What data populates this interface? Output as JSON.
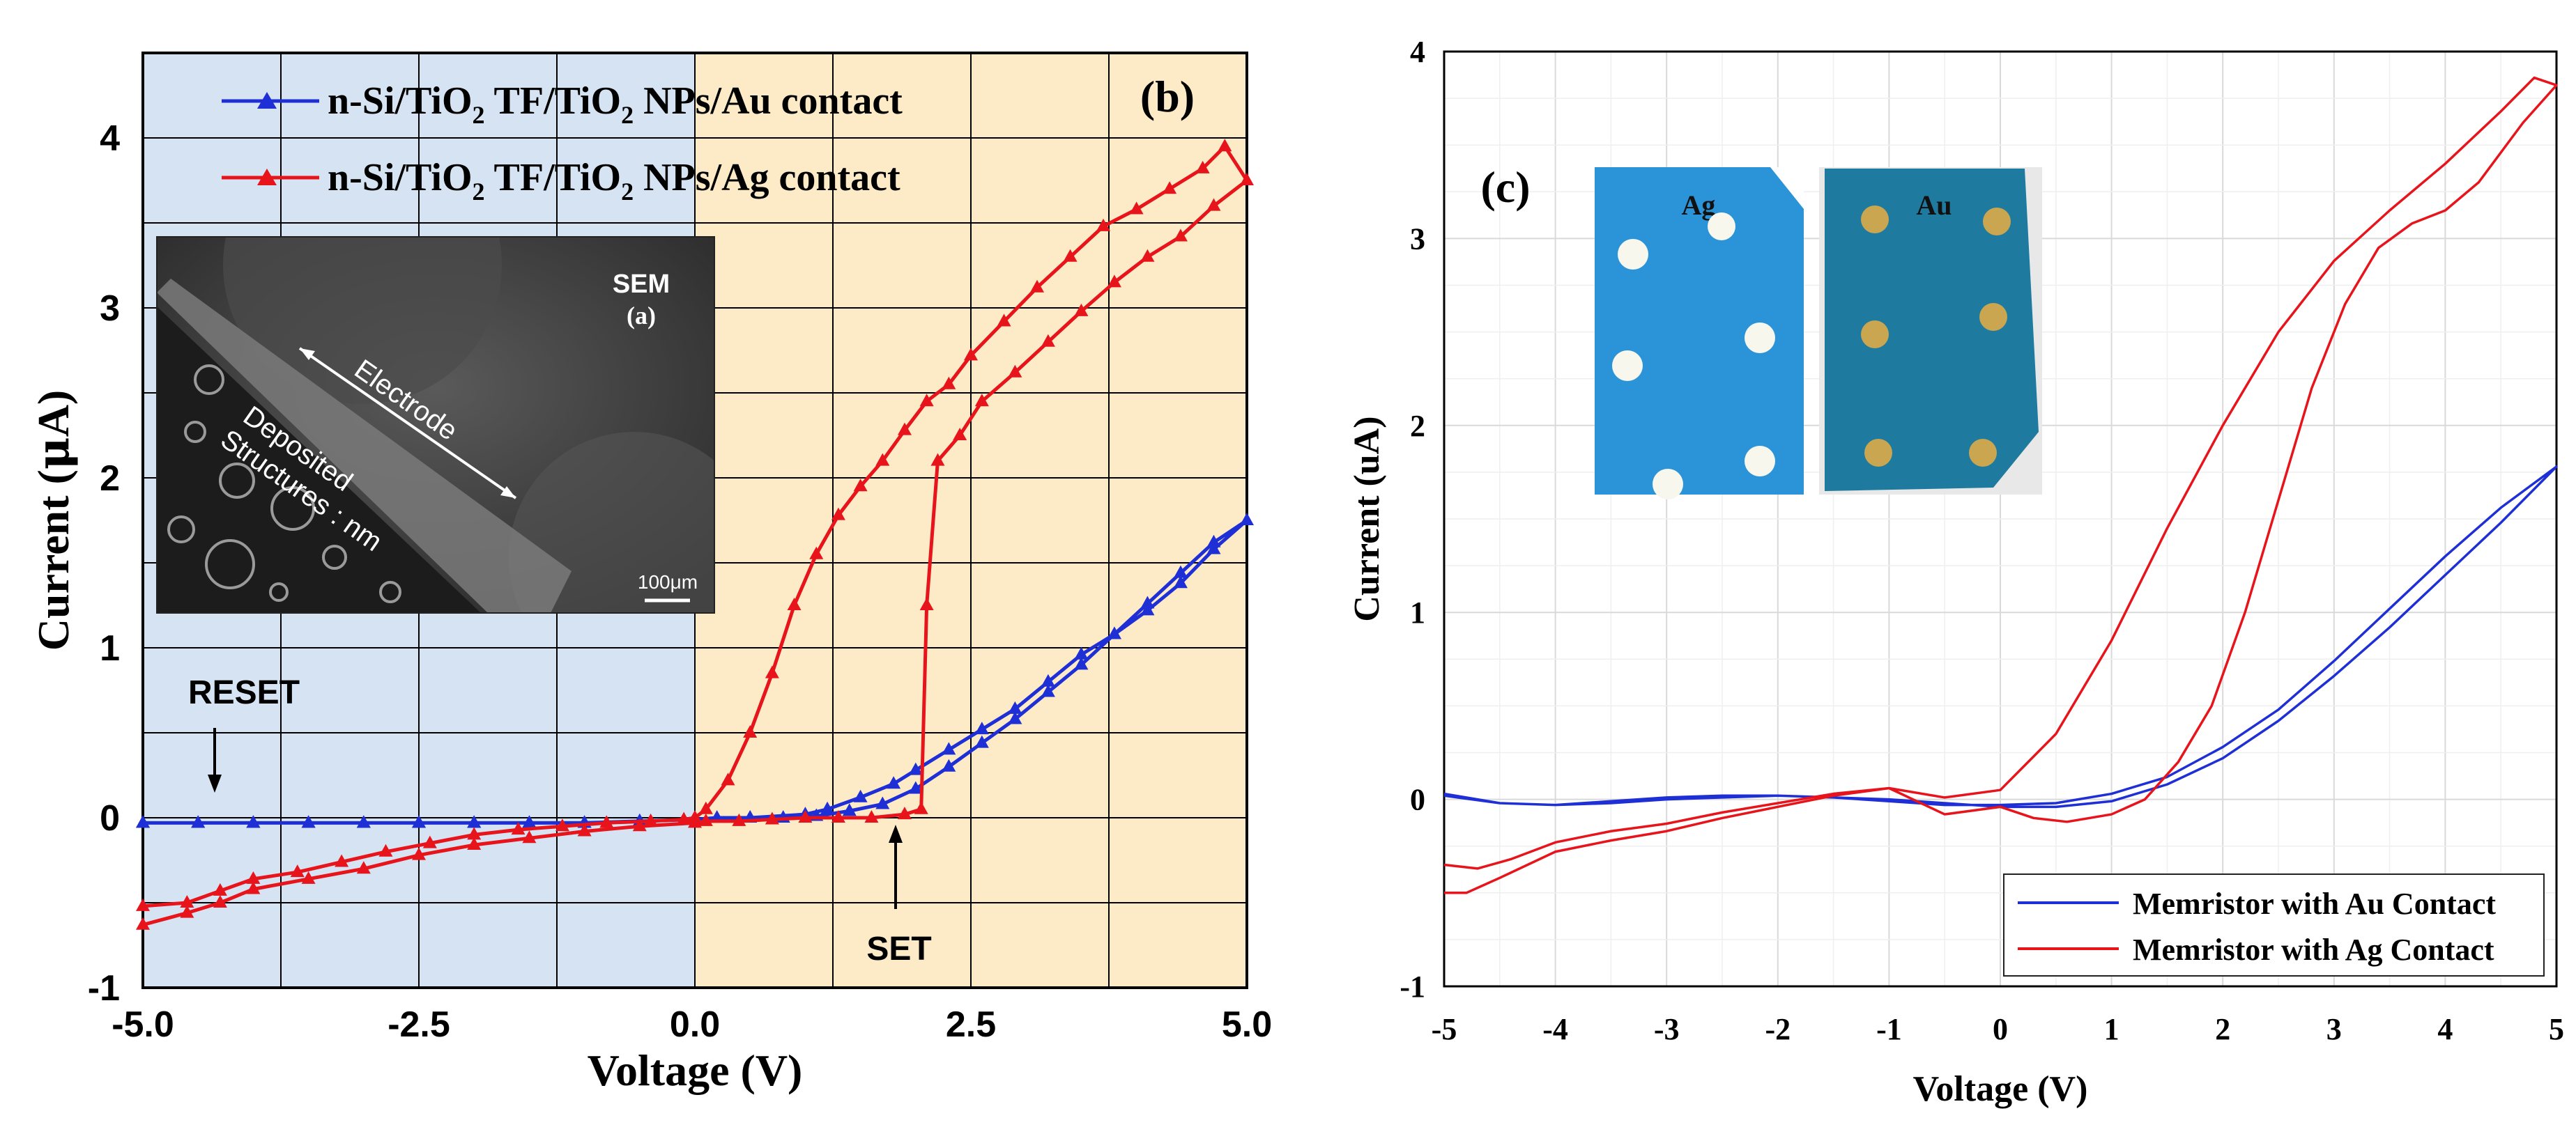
{
  "chart_data": [
    {
      "type": "line",
      "panel_label": "(b)",
      "xlabel": "Voltage (V)",
      "ylabel_main": "Current (",
      "ylabel_mu": "μ",
      "ylabel_end": "A)",
      "xlim": [
        -5,
        5
      ],
      "ylim": [
        -1,
        4.5
      ],
      "xticks": [
        -5,
        -2.5,
        0,
        2.5,
        5
      ],
      "xtick_labels": [
        "-5.0",
        "-2.5",
        "0.0",
        "2.5",
        "5.0"
      ],
      "yticks": [
        -1,
        0,
        1,
        2,
        3,
        4
      ],
      "ytick_labels": [
        "-1",
        "0",
        "1",
        "2",
        "3",
        "4"
      ],
      "background_regions": [
        {
          "from": -5,
          "to": 0,
          "color": "#d5e3f2"
        },
        {
          "from": 0,
          "to": 5,
          "color": "#fcebc6"
        }
      ],
      "grid": true,
      "legend_position": "top-left",
      "series": [
        {
          "name_parts": [
            "n-Si/TiO",
            "2",
            " TF/TiO",
            "2",
            " NPs/Au contact"
          ],
          "color": "#1f2fd6",
          "marker": "triangle",
          "x": [
            -5,
            -4.5,
            -4,
            -3.5,
            -3,
            -2.5,
            -2,
            -1.5,
            -1,
            -0.5,
            0,
            0.5,
            1,
            1.2,
            1.5,
            1.8,
            2.0,
            2.3,
            2.6,
            2.9,
            3.2,
            3.5,
            3.8,
            4.1,
            4.4,
            4.7,
            5.0,
            4.7,
            4.4,
            4.1,
            3.8,
            3.5,
            3.2,
            2.9,
            2.6,
            2.3,
            2.0,
            1.7,
            1.4,
            1.1,
            0.8,
            0.5,
            0.2,
            0,
            -0.5,
            -1,
            -1.5,
            -2,
            -2.5,
            -3,
            -3.5,
            -4,
            -4.5,
            -5
          ],
          "y": [
            -0.03,
            -0.03,
            -0.03,
            -0.03,
            -0.03,
            -0.03,
            -0.03,
            -0.03,
            -0.03,
            -0.02,
            -0.01,
            0.0,
            0.02,
            0.05,
            0.12,
            0.2,
            0.28,
            0.4,
            0.52,
            0.64,
            0.8,
            0.96,
            1.08,
            1.22,
            1.38,
            1.58,
            1.75,
            1.62,
            1.44,
            1.26,
            1.08,
            0.9,
            0.74,
            0.58,
            0.44,
            0.3,
            0.17,
            0.08,
            0.04,
            0.01,
            0.0,
            0.0,
            0.0,
            -0.01,
            -0.02,
            -0.03,
            -0.03,
            -0.03,
            -0.03,
            -0.03,
            -0.03,
            -0.03,
            -0.03,
            -0.03
          ]
        },
        {
          "name_parts": [
            "n-Si/TiO",
            "2",
            " TF/TiO",
            "2",
            " NPs/Ag contact"
          ],
          "color": "#e8141b",
          "marker": "triangle",
          "x": [
            -5,
            -4.6,
            -4.3,
            -4.0,
            -3.6,
            -3.2,
            -2.8,
            -2.4,
            -2.0,
            -1.6,
            -1.2,
            -0.8,
            -0.4,
            -0.1,
            0.0,
            0.1,
            0.3,
            0.5,
            0.7,
            0.9,
            1.1,
            1.3,
            1.5,
            1.7,
            1.9,
            2.1,
            2.3,
            2.5,
            2.8,
            3.1,
            3.4,
            3.7,
            4.0,
            4.3,
            4.6,
            4.8,
            5.0,
            4.7,
            4.4,
            4.1,
            3.8,
            3.5,
            3.2,
            2.9,
            2.6,
            2.4,
            2.2,
            2.1,
            2.05,
            1.9,
            1.6,
            1.3,
            1.0,
            0.7,
            0.4,
            0.1,
            0.0,
            -0.5,
            -1.0,
            -1.5,
            -2.0,
            -2.5,
            -3.0,
            -3.5,
            -4.0,
            -4.3,
            -4.6,
            -5.0
          ],
          "y": [
            -0.52,
            -0.5,
            -0.43,
            -0.36,
            -0.32,
            -0.26,
            -0.2,
            -0.15,
            -0.1,
            -0.07,
            -0.05,
            -0.03,
            -0.02,
            -0.01,
            0.0,
            0.05,
            0.22,
            0.5,
            0.85,
            1.25,
            1.55,
            1.78,
            1.95,
            2.1,
            2.28,
            2.45,
            2.55,
            2.72,
            2.92,
            3.12,
            3.3,
            3.48,
            3.58,
            3.7,
            3.82,
            3.95,
            3.75,
            3.6,
            3.42,
            3.3,
            3.15,
            2.98,
            2.8,
            2.62,
            2.45,
            2.25,
            2.1,
            1.25,
            0.05,
            0.02,
            0.0,
            0.0,
            0.0,
            -0.01,
            -0.02,
            -0.02,
            -0.03,
            -0.05,
            -0.08,
            -0.12,
            -0.16,
            -0.22,
            -0.3,
            -0.36,
            -0.42,
            -0.5,
            -0.56,
            -0.63
          ]
        }
      ],
      "annotations": [
        {
          "text": "RESET",
          "arrow_tip": [
            -4.45,
            -0.03
          ],
          "arrow_tail": [
            -4.45,
            0.4
          ],
          "label_at": [
            -4.4,
            0.66
          ]
        },
        {
          "text": "SET",
          "arrow_tip": [
            1.9,
            -0.05
          ],
          "arrow_tail": [
            1.9,
            -0.52
          ],
          "label_at": [
            1.9,
            -0.76
          ]
        }
      ],
      "inset": {
        "label_top": "SEM",
        "label_sub": "(a)",
        "electrode": "Electrode",
        "deposited_line1": "Deposited",
        "deposited_line2": "Structures : nm",
        "scalebar": "100μm"
      }
    },
    {
      "type": "line",
      "panel_label": "(c)",
      "xlabel": "Voltage (V)",
      "ylabel": "Current (uA)",
      "xlim": [
        -5,
        5
      ],
      "ylim": [
        -1,
        4
      ],
      "xticks": [
        -5,
        -4,
        -3,
        -2,
        -1,
        0,
        1,
        2,
        3,
        4,
        5
      ],
      "yticks": [
        -1,
        0,
        1,
        2,
        3,
        4
      ],
      "grid": true,
      "legend_position": "bottom-right",
      "series": [
        {
          "name": "Memristor with Au Contact",
          "color": "#1f2fd6",
          "x": [
            -5,
            -4.5,
            -4,
            -3.5,
            -3,
            -2.5,
            -2,
            -1.5,
            -1,
            -0.5,
            0,
            0.5,
            1,
            1.5,
            2,
            2.5,
            3,
            3.5,
            4,
            4.5,
            5,
            4.5,
            4,
            3.5,
            3,
            2.5,
            2,
            1.5,
            1,
            0.5,
            0,
            -0.5,
            -1,
            -1.5,
            -2,
            -2.5,
            -3,
            -3.5,
            -4,
            -4.5,
            -5
          ],
          "y": [
            0.02,
            -0.02,
            -0.03,
            -0.02,
            0.0,
            0.01,
            0.02,
            0.01,
            -0.01,
            -0.03,
            -0.03,
            -0.02,
            0.03,
            0.12,
            0.28,
            0.48,
            0.74,
            1.02,
            1.3,
            1.56,
            1.78,
            1.48,
            1.2,
            0.92,
            0.66,
            0.42,
            0.22,
            0.08,
            -0.01,
            -0.04,
            -0.04,
            -0.02,
            0.0,
            0.01,
            0.02,
            0.02,
            0.01,
            -0.01,
            -0.03,
            -0.02,
            0.03
          ]
        },
        {
          "name": "Memristor with Ag Contact",
          "color": "#e8141b",
          "x": [
            -5,
            -4.7,
            -4.4,
            -4,
            -3.5,
            -3,
            -2.5,
            -2,
            -1.5,
            -1,
            -0.5,
            0,
            0.5,
            1,
            1.5,
            2,
            2.5,
            3,
            3.5,
            4,
            4.5,
            4.8,
            5,
            4.7,
            4.3,
            4,
            3.7,
            3.4,
            3.1,
            2.8,
            2.5,
            2.2,
            1.9,
            1.6,
            1.3,
            1.0,
            0.6,
            0.3,
            0,
            -0.5,
            -1,
            -1.5,
            -2,
            -2.5,
            -3,
            -3.5,
            -4,
            -4.5,
            -4.8,
            -5
          ],
          "y": [
            -0.35,
            -0.37,
            -0.32,
            -0.23,
            -0.17,
            -0.13,
            -0.07,
            -0.02,
            0.03,
            0.06,
            0.01,
            0.05,
            0.35,
            0.85,
            1.45,
            2.0,
            2.5,
            2.88,
            3.15,
            3.4,
            3.68,
            3.86,
            3.82,
            3.62,
            3.3,
            3.15,
            3.08,
            2.95,
            2.65,
            2.2,
            1.6,
            1.0,
            0.5,
            0.2,
            0.0,
            -0.08,
            -0.12,
            -0.1,
            -0.04,
            -0.08,
            0.06,
            0.02,
            -0.04,
            -0.1,
            -0.17,
            -0.22,
            -0.28,
            -0.42,
            -0.5,
            -0.5
          ]
        }
      ],
      "inset_labels": [
        "Ag",
        "Au"
      ]
    }
  ]
}
